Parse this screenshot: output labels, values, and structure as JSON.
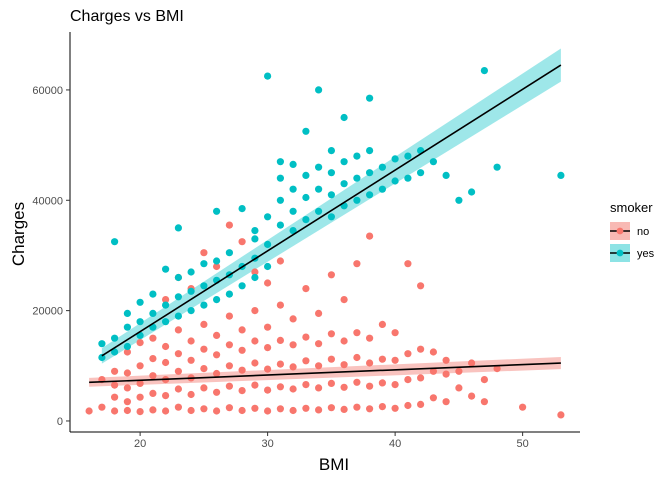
{
  "chart_data": {
    "type": "scatter",
    "title": "Charges vs BMI",
    "xlabel": "BMI",
    "ylabel": "Charges",
    "xlim": [
      14.5,
      54.5
    ],
    "ylim": [
      -2000,
      70500
    ],
    "x_ticks": [
      20,
      30,
      40,
      50
    ],
    "y_ticks": [
      0,
      20000,
      40000,
      60000
    ],
    "grid": false,
    "legend": {
      "title": "smoker",
      "placement": "right"
    },
    "series": [
      {
        "name": "no",
        "color": "#f8766d",
        "points": [
          [
            16,
            1800
          ],
          [
            17,
            2500
          ],
          [
            17,
            7500
          ],
          [
            18,
            1800
          ],
          [
            18,
            4300
          ],
          [
            18,
            6500
          ],
          [
            18,
            9000
          ],
          [
            19,
            1900
          ],
          [
            19,
            3500
          ],
          [
            19,
            6000
          ],
          [
            19,
            8700
          ],
          [
            19,
            12500
          ],
          [
            20,
            1700
          ],
          [
            20,
            4300
          ],
          [
            20,
            6800
          ],
          [
            20,
            10000
          ],
          [
            20,
            14200
          ],
          [
            21,
            2000
          ],
          [
            21,
            5000
          ],
          [
            21,
            8200
          ],
          [
            21,
            11300
          ],
          [
            21,
            15000
          ],
          [
            22,
            1800
          ],
          [
            22,
            4600
          ],
          [
            22,
            7500
          ],
          [
            22,
            10600
          ],
          [
            22,
            13500
          ],
          [
            22,
            22000
          ],
          [
            23,
            2500
          ],
          [
            23,
            5800
          ],
          [
            23,
            9000
          ],
          [
            23,
            12200
          ],
          [
            23,
            16500
          ],
          [
            23,
            26000
          ],
          [
            24,
            1900
          ],
          [
            24,
            4800
          ],
          [
            24,
            7800
          ],
          [
            24,
            11000
          ],
          [
            24,
            14500
          ],
          [
            24,
            24000
          ],
          [
            25,
            2200
          ],
          [
            25,
            6000
          ],
          [
            25,
            9500
          ],
          [
            25,
            13000
          ],
          [
            25,
            17500
          ],
          [
            25,
            30500
          ],
          [
            26,
            1800
          ],
          [
            26,
            5200
          ],
          [
            26,
            8600
          ],
          [
            26,
            12000
          ],
          [
            26,
            15500
          ],
          [
            26,
            28000
          ],
          [
            27,
            2400
          ],
          [
            27,
            6300
          ],
          [
            27,
            10000
          ],
          [
            27,
            13800
          ],
          [
            27,
            19000
          ],
          [
            27,
            35500
          ],
          [
            28,
            1900
          ],
          [
            28,
            5500
          ],
          [
            28,
            9200
          ],
          [
            28,
            12800
          ],
          [
            28,
            16500
          ],
          [
            28,
            32500
          ],
          [
            29,
            2300
          ],
          [
            29,
            6500
          ],
          [
            29,
            10500
          ],
          [
            29,
            14500
          ],
          [
            29,
            20000
          ],
          [
            29,
            27000
          ],
          [
            30,
            1800
          ],
          [
            30,
            5600
          ],
          [
            30,
            9400
          ],
          [
            30,
            13300
          ],
          [
            30,
            17000
          ],
          [
            30,
            25000
          ],
          [
            31,
            2200
          ],
          [
            31,
            6200
          ],
          [
            31,
            10300
          ],
          [
            31,
            14600
          ],
          [
            31,
            21000
          ],
          [
            31,
            29000
          ],
          [
            32,
            1900
          ],
          [
            32,
            5800
          ],
          [
            32,
            9800
          ],
          [
            32,
            13800
          ],
          [
            32,
            18500
          ],
          [
            33,
            2300
          ],
          [
            33,
            6600
          ],
          [
            33,
            10900
          ],
          [
            33,
            15200
          ],
          [
            33,
            24000
          ],
          [
            34,
            2000
          ],
          [
            34,
            6000
          ],
          [
            34,
            10000
          ],
          [
            34,
            14000
          ],
          [
            34,
            19500
          ],
          [
            35,
            2400
          ],
          [
            35,
            6800
          ],
          [
            35,
            11200
          ],
          [
            35,
            15800
          ],
          [
            35,
            26500
          ],
          [
            36,
            2100
          ],
          [
            36,
            6100
          ],
          [
            36,
            10200
          ],
          [
            36,
            14500
          ],
          [
            36,
            22000
          ],
          [
            37,
            2500
          ],
          [
            37,
            7000
          ],
          [
            37,
            11500
          ],
          [
            37,
            16000
          ],
          [
            37,
            28500
          ],
          [
            38,
            2200
          ],
          [
            38,
            6300
          ],
          [
            38,
            10500
          ],
          [
            38,
            15000
          ],
          [
            38,
            33500
          ],
          [
            39,
            2600
          ],
          [
            39,
            6900
          ],
          [
            39,
            11200
          ],
          [
            39,
            17500
          ],
          [
            40,
            2300
          ],
          [
            40,
            6600
          ],
          [
            40,
            11000
          ],
          [
            40,
            16000
          ],
          [
            41,
            2800
          ],
          [
            41,
            7500
          ],
          [
            41,
            12200
          ],
          [
            41,
            28500
          ],
          [
            42,
            3000
          ],
          [
            42,
            7800
          ],
          [
            42,
            13000
          ],
          [
            42,
            24500
          ],
          [
            43,
            4200
          ],
          [
            43,
            9000
          ],
          [
            43,
            12500
          ],
          [
            44,
            3500
          ],
          [
            44,
            8500
          ],
          [
            44,
            11000
          ],
          [
            45,
            6000
          ],
          [
            45,
            9000
          ],
          [
            46,
            4500
          ],
          [
            46,
            10500
          ],
          [
            47,
            3500
          ],
          [
            47,
            7500
          ],
          [
            48,
            9500
          ],
          [
            50,
            2500
          ],
          [
            53,
            1100
          ]
        ]
      },
      {
        "name": "yes",
        "color": "#00bfc4",
        "points": [
          [
            17,
            14000
          ],
          [
            17,
            11500
          ],
          [
            18,
            32500
          ],
          [
            18,
            15000
          ],
          [
            18,
            12500
          ],
          [
            19,
            17000
          ],
          [
            19,
            13500
          ],
          [
            19,
            19500
          ],
          [
            20,
            15500
          ],
          [
            20,
            18000
          ],
          [
            20,
            21500
          ],
          [
            21,
            17000
          ],
          [
            21,
            19500
          ],
          [
            21,
            23000
          ],
          [
            22,
            18000
          ],
          [
            22,
            21000
          ],
          [
            22,
            27500
          ],
          [
            23,
            35000
          ],
          [
            23,
            19000
          ],
          [
            23,
            22500
          ],
          [
            23,
            26000
          ],
          [
            24,
            20000
          ],
          [
            24,
            23500
          ],
          [
            24,
            27000
          ],
          [
            25,
            21000
          ],
          [
            25,
            24500
          ],
          [
            25,
            28500
          ],
          [
            26,
            38000
          ],
          [
            26,
            22000
          ],
          [
            26,
            25500
          ],
          [
            26,
            29000
          ],
          [
            27,
            23000
          ],
          [
            27,
            26500
          ],
          [
            27,
            30500
          ],
          [
            28,
            24500
          ],
          [
            28,
            28000
          ],
          [
            28,
            38500
          ],
          [
            29,
            34500
          ],
          [
            29,
            26000
          ],
          [
            29,
            29500
          ],
          [
            29,
            33000
          ],
          [
            30,
            62500
          ],
          [
            30,
            37000
          ],
          [
            30,
            28000
          ],
          [
            30,
            32000
          ],
          [
            31,
            35500
          ],
          [
            31,
            40000
          ],
          [
            31,
            44000
          ],
          [
            31,
            47000
          ],
          [
            32,
            34500
          ],
          [
            32,
            38000
          ],
          [
            32,
            42000
          ],
          [
            32,
            46500
          ],
          [
            33,
            52500
          ],
          [
            33,
            36500
          ],
          [
            33,
            40500
          ],
          [
            33,
            44500
          ],
          [
            34,
            60000
          ],
          [
            34,
            38000
          ],
          [
            34,
            42000
          ],
          [
            34,
            46000
          ],
          [
            35,
            37000
          ],
          [
            35,
            41000
          ],
          [
            35,
            45000
          ],
          [
            35,
            49000
          ],
          [
            36,
            55000
          ],
          [
            36,
            39000
          ],
          [
            36,
            43000
          ],
          [
            36,
            47000
          ],
          [
            37,
            40000
          ],
          [
            37,
            44000
          ],
          [
            37,
            48000
          ],
          [
            38,
            58500
          ],
          [
            38,
            41000
          ],
          [
            38,
            45000
          ],
          [
            38,
            49000
          ],
          [
            39,
            42000
          ],
          [
            39,
            46000
          ],
          [
            40,
            43500
          ],
          [
            40,
            47500
          ],
          [
            41,
            44000
          ],
          [
            41,
            48000
          ],
          [
            42,
            45000
          ],
          [
            42,
            49000
          ],
          [
            43,
            47000
          ],
          [
            44,
            44500
          ],
          [
            45,
            40000
          ],
          [
            46,
            41500
          ],
          [
            47,
            63500
          ],
          [
            48,
            46000
          ],
          [
            53,
            44500
          ]
        ]
      }
    ],
    "fits": [
      {
        "series": "no",
        "x": [
          16,
          53
        ],
        "y": [
          7000,
          10500
        ],
        "se_low": [
          6200,
          9400
        ],
        "se_high": [
          7800,
          11600
        ]
      },
      {
        "series": "yes",
        "x": [
          17,
          53
        ],
        "y": [
          11800,
          64500
        ],
        "se_low": [
          10400,
          61500
        ],
        "se_high": [
          13200,
          67500
        ]
      }
    ]
  }
}
